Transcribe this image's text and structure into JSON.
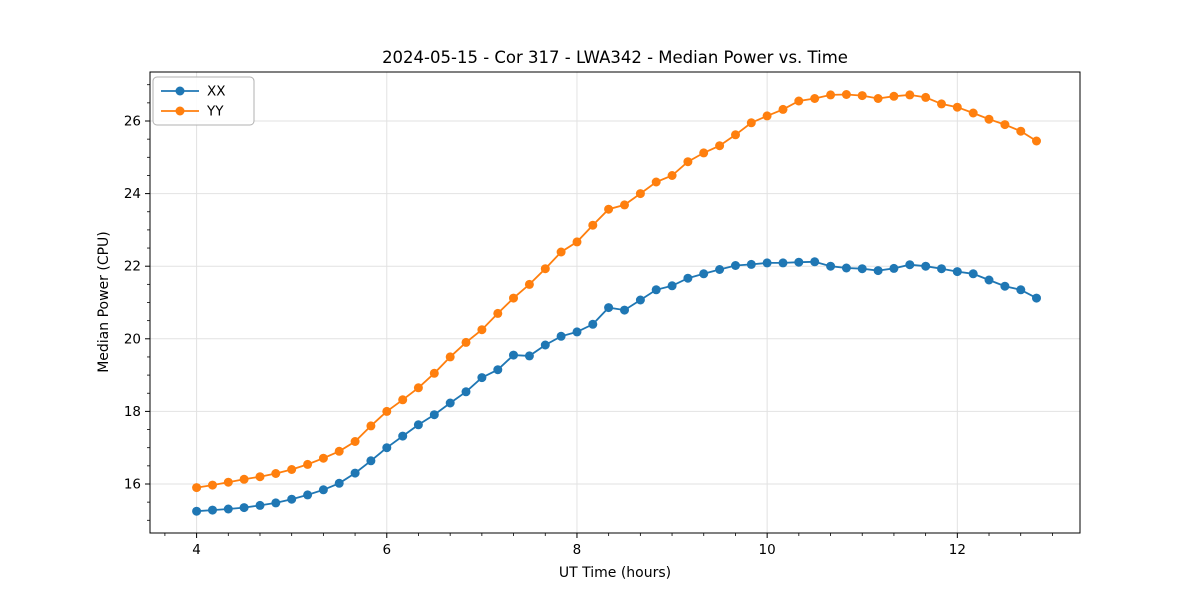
{
  "chart_data": {
    "type": "line",
    "title": "2024-05-15 - Cor 317 - LWA342 - Median Power vs. Time",
    "xlabel": "UT Time (hours)",
    "ylabel": "Median Power (CPU)",
    "xlim": [
      3.51,
      13.29
    ],
    "ylim": [
      14.65,
      27.35
    ],
    "x_major_ticks": [
      4,
      6,
      8,
      10,
      12
    ],
    "y_major_ticks": [
      16,
      18,
      20,
      22,
      24,
      26
    ],
    "x_minor_step": 0.33333,
    "y_minor_step": 0.5,
    "grid": true,
    "legend_position": "upper-left",
    "background_color": "#ffffff",
    "grid_color": "#e2e2e2",
    "x": [
      4.0,
      4.167,
      4.333,
      4.5,
      4.667,
      4.833,
      5.0,
      5.167,
      5.333,
      5.5,
      5.667,
      5.833,
      6.0,
      6.167,
      6.333,
      6.5,
      6.667,
      6.833,
      7.0,
      7.167,
      7.333,
      7.5,
      7.667,
      7.833,
      8.0,
      8.167,
      8.333,
      8.5,
      8.667,
      8.833,
      9.0,
      9.167,
      9.333,
      9.5,
      9.667,
      9.833,
      10.0,
      10.167,
      10.333,
      10.5,
      10.667,
      10.833,
      11.0,
      11.167,
      11.333,
      11.5,
      11.667,
      11.833,
      12.0,
      12.167,
      12.333,
      12.5,
      12.667,
      12.833
    ],
    "series": [
      {
        "name": "XX",
        "color": "#1f77b4",
        "values": [
          15.25,
          15.28,
          15.31,
          15.35,
          15.41,
          15.48,
          15.58,
          15.7,
          15.84,
          16.02,
          16.3,
          16.64,
          17.0,
          17.32,
          17.63,
          17.91,
          18.23,
          18.54,
          18.93,
          19.15,
          19.55,
          19.53,
          19.83,
          20.07,
          20.19,
          20.4,
          20.86,
          20.79,
          21.07,
          21.35,
          21.46,
          21.67,
          21.79,
          21.91,
          22.02,
          22.05,
          22.09,
          22.09,
          22.11,
          22.12,
          22.0,
          21.95,
          21.93,
          21.88,
          21.94,
          22.04,
          22.0,
          21.93,
          21.85,
          21.79,
          21.62,
          21.45,
          21.35,
          21.12
        ]
      },
      {
        "name": "YY",
        "color": "#ff7f0e",
        "values": [
          15.9,
          15.97,
          16.05,
          16.13,
          16.2,
          16.29,
          16.4,
          16.54,
          16.71,
          16.9,
          17.17,
          17.6,
          18.0,
          18.32,
          18.65,
          19.05,
          19.5,
          19.9,
          20.25,
          20.7,
          21.12,
          21.5,
          21.93,
          22.39,
          22.67,
          23.13,
          23.57,
          23.69,
          24.0,
          24.32,
          24.5,
          24.88,
          25.12,
          25.32,
          25.62,
          25.95,
          26.14,
          26.32,
          26.55,
          26.62,
          26.72,
          26.73,
          26.7,
          26.62,
          26.68,
          26.72,
          26.65,
          26.47,
          26.38,
          26.22,
          26.05,
          25.9,
          25.72,
          25.45
        ]
      }
    ]
  }
}
